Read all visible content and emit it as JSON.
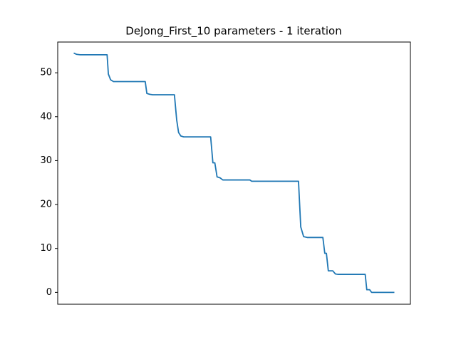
{
  "chart_data": {
    "type": "line",
    "title": "DeJong_First_10 parameters - 1 iteration",
    "x": [
      0,
      0.9,
      2,
      10.4,
      10.8,
      11.5,
      12.4,
      22.3,
      22.8,
      23.7,
      24.6,
      31.4,
      32.1,
      32.7,
      33.4,
      34.3,
      42.7,
      43.4,
      44.0,
      44.7,
      45.6,
      46.5,
      54.9,
      55.5,
      65.7,
      70.1,
      70.8,
      71.7,
      72.8,
      77.7,
      78.3,
      78.8,
      79.4,
      80.8,
      81.6,
      82.5,
      90.9,
      91.4,
      92.3,
      92.9,
      100
    ],
    "series": [
      {
        "color": "#1f77b4",
        "values": [
          54.5,
          54.2,
          54.1,
          54.1,
          49.7,
          48.4,
          48.0,
          48.0,
          45.3,
          45.1,
          45.0,
          45.0,
          39.3,
          36.4,
          35.6,
          35.4,
          35.4,
          29.5,
          29.5,
          26.3,
          26.1,
          25.6,
          25.6,
          25.3,
          25.3,
          25.3,
          14.9,
          12.7,
          12.5,
          12.5,
          8.9,
          8.9,
          4.9,
          4.9,
          4.2,
          4.1,
          4.1,
          0.6,
          0.6,
          0.0,
          0.0
        ]
      }
    ],
    "xlim": [
      -5,
      105
    ],
    "ylim": [
      -2.7,
      57.0
    ],
    "yticks": [
      0,
      10,
      20,
      30,
      40,
      50
    ]
  }
}
